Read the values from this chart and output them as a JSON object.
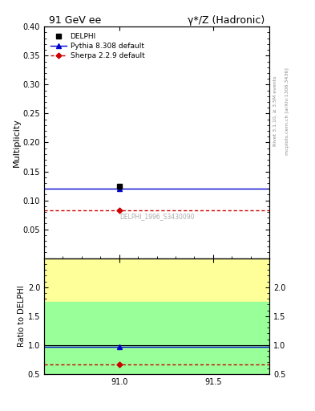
{
  "title_left": "91 GeV ee",
  "title_right": "γ*/Z (Hadronic)",
  "ylabel_main": "Multiplicity",
  "ylabel_ratio": "Ratio to DELPHI",
  "right_label_1": "Rivet 3.1.10, ≥ 3.5M events",
  "right_label_2": "mcplots.cern.ch [arXiv:1306.3436]",
  "watermark": "DELPHI_1996_S3430090",
  "xlim": [
    90.6,
    91.8
  ],
  "xticks": [
    91.0,
    91.5
  ],
  "ylim_main": [
    0.0,
    0.4
  ],
  "yticks_main": [
    0.05,
    0.1,
    0.15,
    0.2,
    0.25,
    0.3,
    0.35,
    0.4
  ],
  "ylim_ratio": [
    0.5,
    2.5
  ],
  "yticks_ratio": [
    0.5,
    1.0,
    1.5,
    2.0
  ],
  "data_x": 91.0,
  "data_y": 0.124,
  "data_xerr": 0.0,
  "data_yerr": 0.003,
  "pythia_x_lo": 90.6,
  "pythia_x_hi": 91.8,
  "pythia_y": 0.12,
  "sherpa_y": 0.083,
  "ratio_pythia": 0.968,
  "ratio_sherpa": 0.67,
  "data_color": "#000000",
  "pythia_color": "#0000cc",
  "sherpa_color": "#cc0000",
  "band_yellow_lo": 0.5,
  "band_yellow_hi": 2.5,
  "band_green_lo": 0.5,
  "band_green_hi": 1.75,
  "band_yellow_color": "#ffff99",
  "band_green_color": "#99ff99",
  "legend_labels": [
    "DELPHI",
    "Pythia 8.308 default",
    "Sherpa 2.2.9 default"
  ]
}
